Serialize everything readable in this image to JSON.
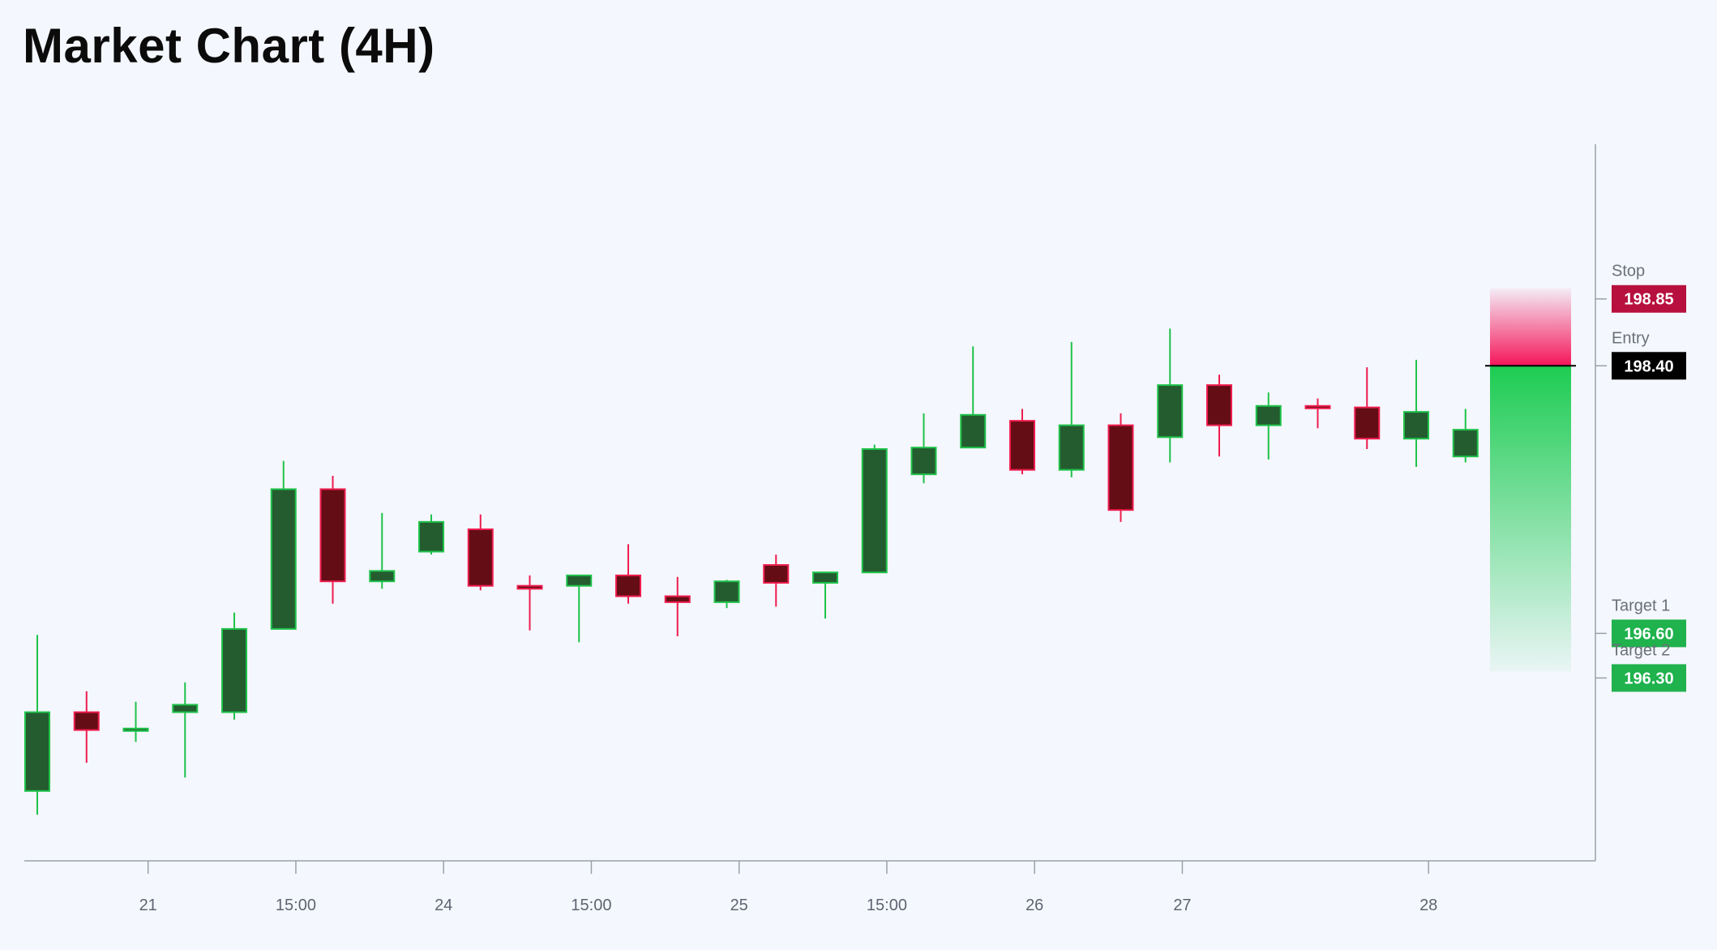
{
  "header": {
    "title": "Market Chart (4H)"
  },
  "colors": {
    "bull_body": "#245c30",
    "bull_edge": "#1fc24a",
    "bear_body": "#650d15",
    "bear_edge": "#ef1c4e",
    "stop": "#b8103e",
    "entry": "#000000",
    "target": "#1fb24d",
    "axis": "#9aa0aa",
    "background": "#f4f7fd"
  },
  "chart_data": {
    "type": "candlestick",
    "title": "Market Chart (4H)",
    "xlabel": "",
    "ylabel": "",
    "ylim": [
      195.07,
      199.89
    ],
    "grid": false,
    "x_ticks": [
      {
        "index": 2.25,
        "label": "21"
      },
      {
        "index": 5.25,
        "label": "15:00"
      },
      {
        "index": 8.25,
        "label": "24"
      },
      {
        "index": 11.25,
        "label": "15:00"
      },
      {
        "index": 14.25,
        "label": "25"
      },
      {
        "index": 17.25,
        "label": "15:00"
      },
      {
        "index": 20.25,
        "label": "26"
      },
      {
        "index": 23.25,
        "label": "27"
      },
      {
        "index": 28.25,
        "label": "28"
      }
    ],
    "candles": [
      {
        "o": 195.54,
        "h": 196.59,
        "l": 195.38,
        "c": 196.07
      },
      {
        "o": 196.07,
        "h": 196.21,
        "l": 195.73,
        "c": 195.95
      },
      {
        "o": 195.95,
        "h": 196.14,
        "l": 195.87,
        "c": 195.96
      },
      {
        "o": 196.07,
        "h": 196.27,
        "l": 195.63,
        "c": 196.12
      },
      {
        "o": 196.07,
        "h": 196.74,
        "l": 196.02,
        "c": 196.63
      },
      {
        "o": 196.63,
        "h": 197.76,
        "l": 196.63,
        "c": 197.57
      },
      {
        "o": 197.57,
        "h": 197.66,
        "l": 196.8,
        "c": 196.95
      },
      {
        "o": 196.95,
        "h": 197.41,
        "l": 196.9,
        "c": 197.02
      },
      {
        "o": 197.15,
        "h": 197.4,
        "l": 197.13,
        "c": 197.35
      },
      {
        "o": 197.3,
        "h": 197.4,
        "l": 196.89,
        "c": 196.92
      },
      {
        "o": 196.92,
        "h": 196.99,
        "l": 196.62,
        "c": 196.9
      },
      {
        "o": 196.92,
        "h": 196.99,
        "l": 196.54,
        "c": 196.99
      },
      {
        "o": 196.99,
        "h": 197.2,
        "l": 196.8,
        "c": 196.85
      },
      {
        "o": 196.85,
        "h": 196.98,
        "l": 196.58,
        "c": 196.81
      },
      {
        "o": 196.81,
        "h": 196.96,
        "l": 196.77,
        "c": 196.95
      },
      {
        "o": 197.06,
        "h": 197.13,
        "l": 196.78,
        "c": 196.94
      },
      {
        "o": 196.94,
        "h": 197.01,
        "l": 196.7,
        "c": 197.01
      },
      {
        "o": 197.01,
        "h": 197.87,
        "l": 197.01,
        "c": 197.84
      },
      {
        "o": 197.67,
        "h": 198.08,
        "l": 197.61,
        "c": 197.85
      },
      {
        "o": 197.85,
        "h": 198.53,
        "l": 197.85,
        "c": 198.07
      },
      {
        "o": 198.03,
        "h": 198.11,
        "l": 197.67,
        "c": 197.7
      },
      {
        "o": 197.7,
        "h": 198.56,
        "l": 197.65,
        "c": 198.0
      },
      {
        "o": 198.0,
        "h": 198.08,
        "l": 197.35,
        "c": 197.43
      },
      {
        "o": 197.92,
        "h": 198.65,
        "l": 197.75,
        "c": 198.27
      },
      {
        "o": 198.27,
        "h": 198.34,
        "l": 197.79,
        "c": 198.0
      },
      {
        "o": 198.0,
        "h": 198.22,
        "l": 197.77,
        "c": 198.13
      },
      {
        "o": 198.13,
        "h": 198.18,
        "l": 197.98,
        "c": 198.12
      },
      {
        "o": 198.12,
        "h": 198.39,
        "l": 197.84,
        "c": 197.91
      },
      {
        "o": 197.91,
        "h": 198.44,
        "l": 197.72,
        "c": 198.09
      },
      {
        "o": 197.79,
        "h": 198.11,
        "l": 197.75,
        "c": 197.97
      }
    ],
    "levels": [
      {
        "caption": "Stop",
        "value": 198.85,
        "label": "198.85",
        "role": "stop"
      },
      {
        "caption": "Entry",
        "value": 198.4,
        "label": "198.40",
        "role": "entry"
      },
      {
        "caption": "Target 1",
        "value": 196.6,
        "label": "196.60",
        "role": "target"
      },
      {
        "caption": "Target 2",
        "value": 196.3,
        "label": "196.30",
        "role": "target"
      }
    ],
    "position": {
      "type": "short",
      "entry": 198.4,
      "stop": 198.85,
      "target": 196.3
    }
  }
}
